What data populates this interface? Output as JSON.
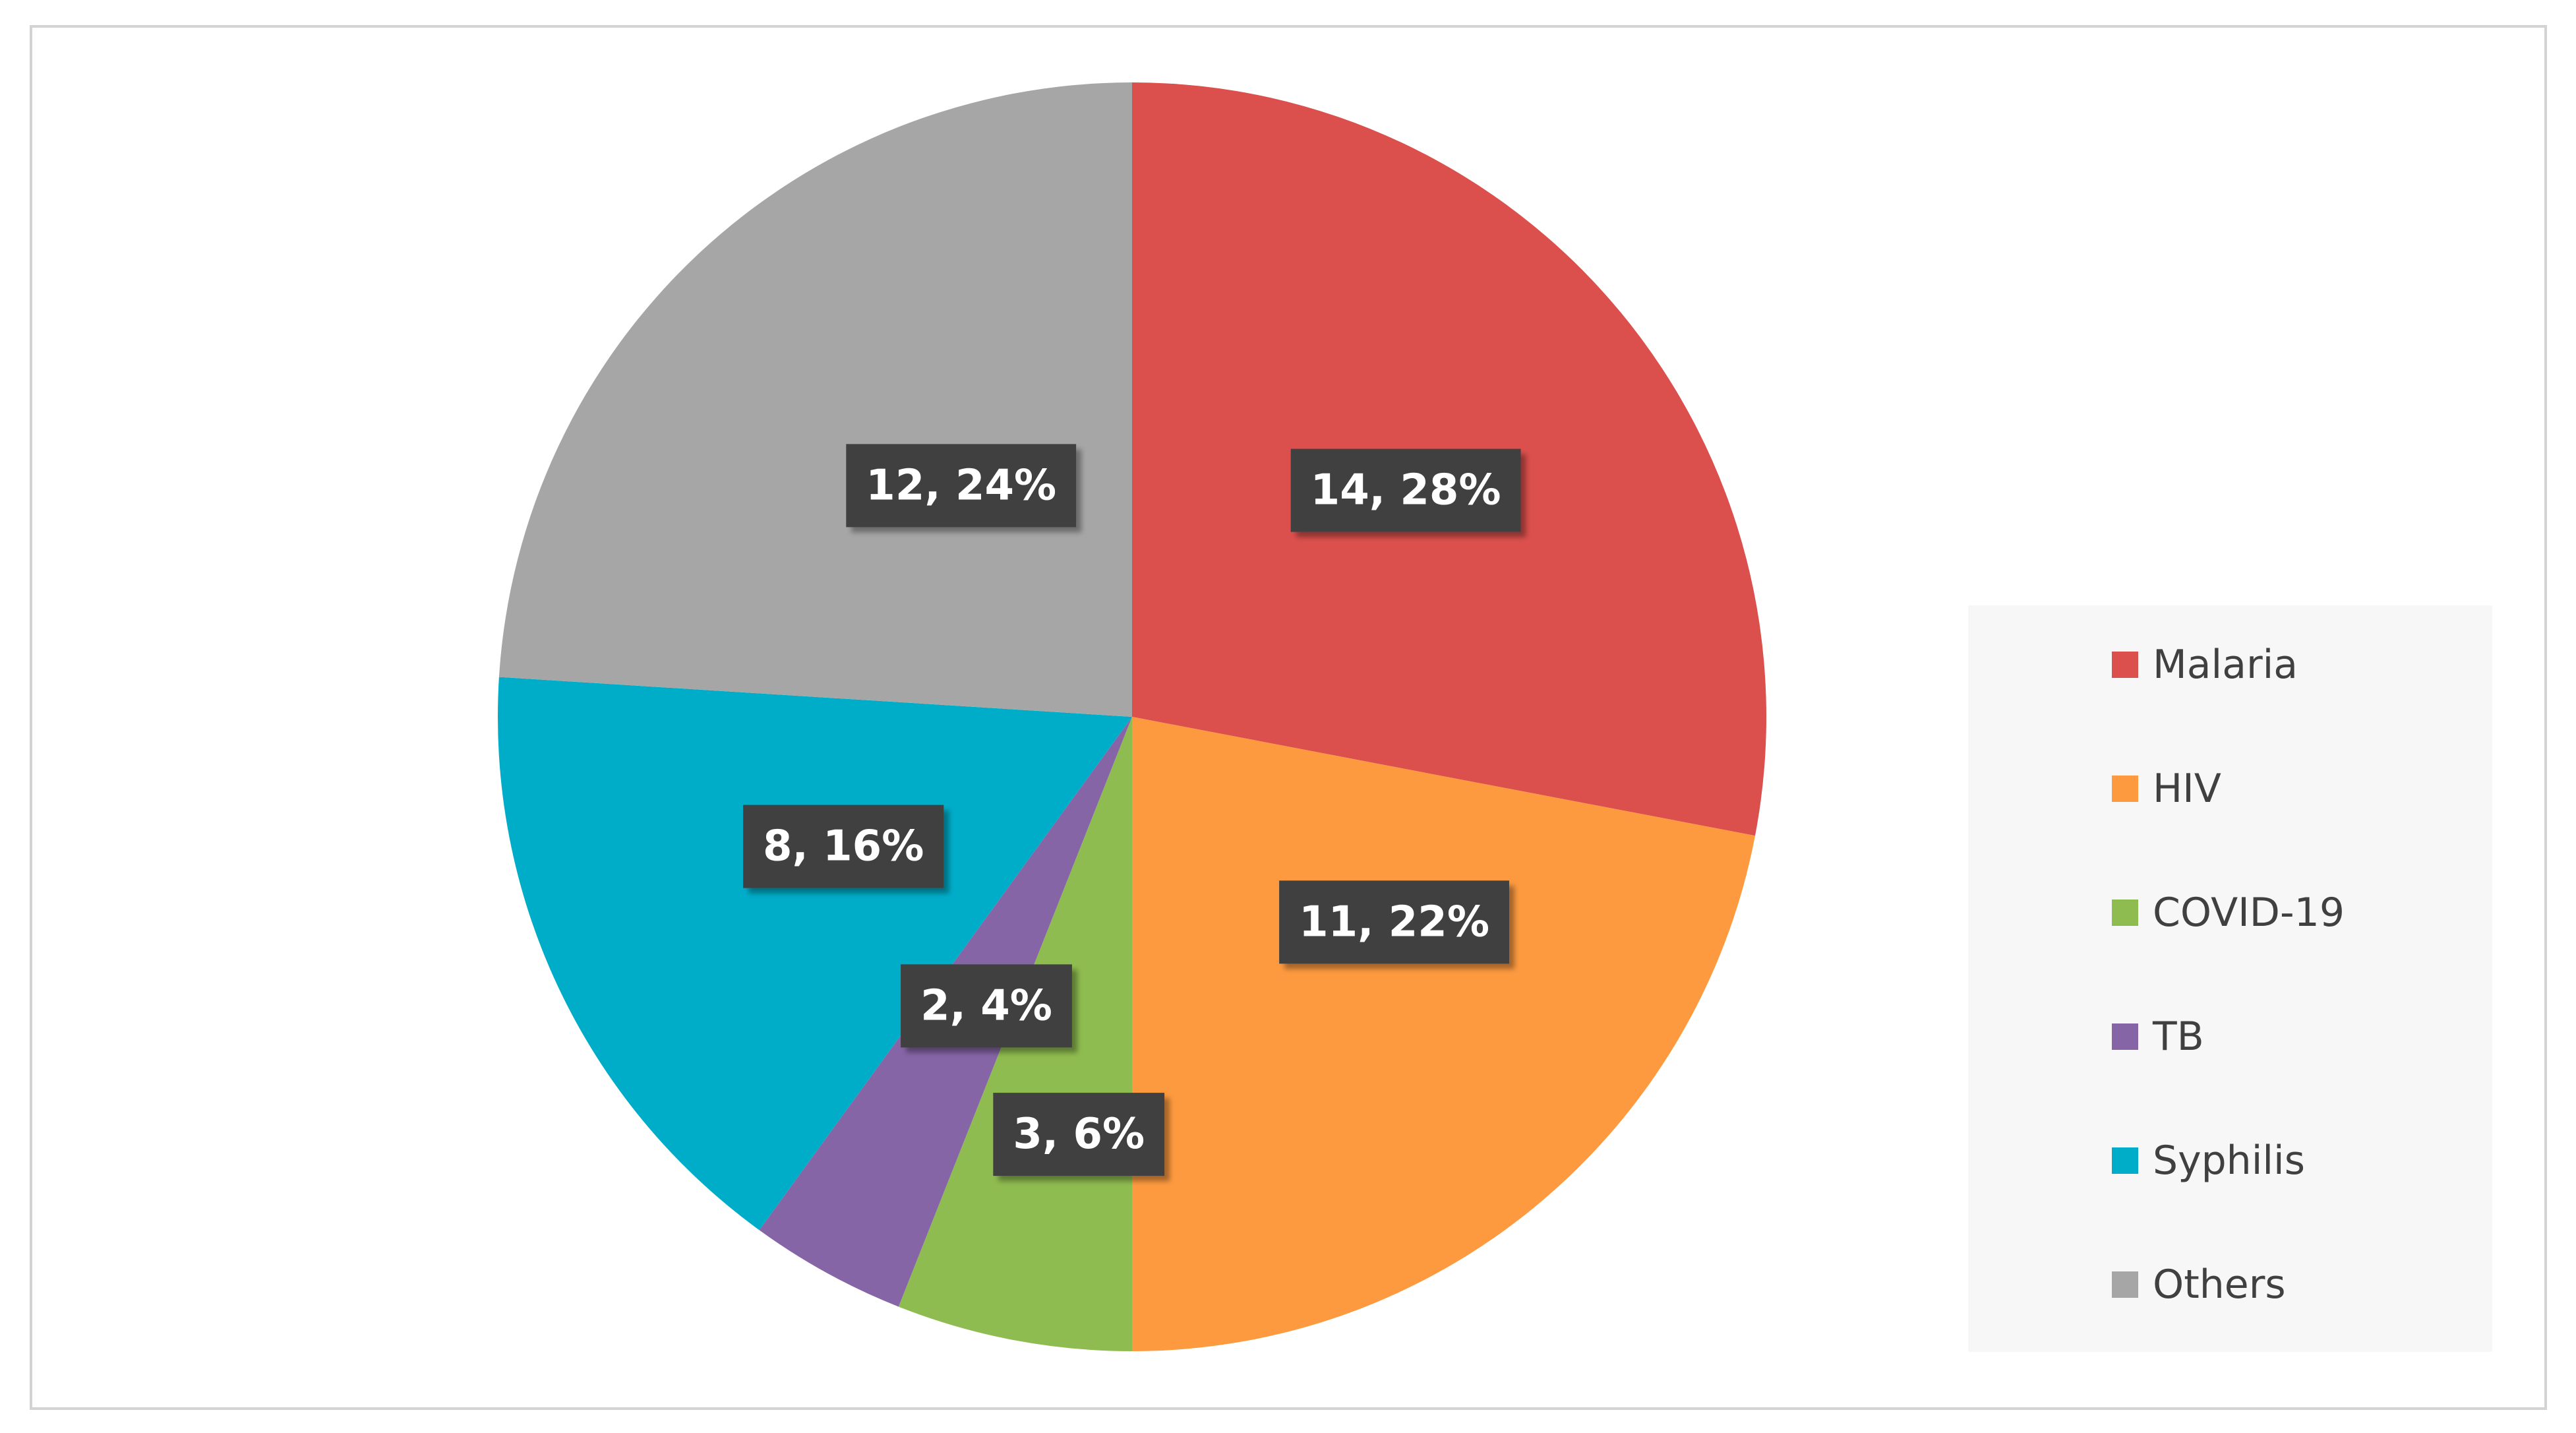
{
  "chart_data": {
    "type": "pie",
    "title": "",
    "start_angle_deg": 0,
    "direction": "clockwise",
    "slices": [
      {
        "label": "Malaria",
        "value": 14,
        "percent": "28%",
        "data_label": "14, 28%",
        "color": "#db504d"
      },
      {
        "label": "HIV",
        "value": 11,
        "percent": "22%",
        "data_label": "11, 22%",
        "color": "#fd9a3f"
      },
      {
        "label": "COVID-19",
        "value": 3,
        "percent": "6%",
        "data_label": "3, 6%",
        "color": "#8fbc50"
      },
      {
        "label": "TB",
        "value": 2,
        "percent": "4%",
        "data_label": "2, 4%",
        "color": "#8665a6"
      },
      {
        "label": "Syphilis",
        "value": 8,
        "percent": "16%",
        "data_label": "8, 16%",
        "color": "#00adc9"
      },
      {
        "label": "Others",
        "value": 12,
        "percent": "24%",
        "data_label": "12, 24%",
        "color": "#a6a6a6"
      }
    ],
    "legend_position": "right",
    "data_label_style": {
      "background": "#404040",
      "color": "#ffffff"
    }
  }
}
